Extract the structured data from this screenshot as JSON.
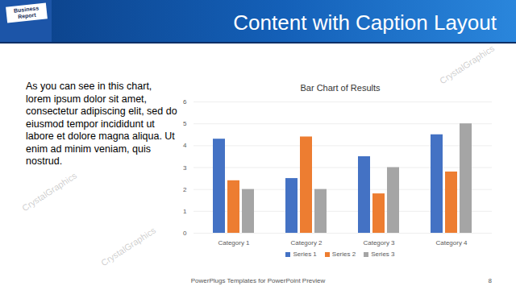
{
  "slide": {
    "title": "Content with Caption Layout",
    "image_label": "Business Report",
    "caption": "As you can see in this chart, lorem ipsum dolor sit amet, consectetur adipiscing elit, sed do eiusmod tempor incididunt ut labore et dolore magna aliqua. Ut enim ad minim veniam, quis nostrud.",
    "footer": "PowerPlugs Templates for PowerPoint Preview",
    "page_number": "8",
    "watermark": "CrystalGraphics"
  },
  "chart_data": {
    "type": "bar",
    "title": "Bar Chart of Results",
    "categories": [
      "Category 1",
      "Category 2",
      "Category 3",
      "Category 4"
    ],
    "series": [
      {
        "name": "Series 1",
        "color": "#4472c4",
        "values": [
          4.3,
          2.5,
          3.5,
          4.5
        ]
      },
      {
        "name": "Series 2",
        "color": "#ed7d31",
        "values": [
          2.4,
          4.4,
          1.8,
          2.8
        ]
      },
      {
        "name": "Series 3",
        "color": "#a5a5a5",
        "values": [
          2,
          2,
          3,
          5
        ]
      }
    ],
    "ylim": [
      0,
      6
    ],
    "yticks": [
      0,
      1,
      2,
      3,
      4,
      5,
      6
    ],
    "grid": true,
    "legend": "bottom"
  }
}
